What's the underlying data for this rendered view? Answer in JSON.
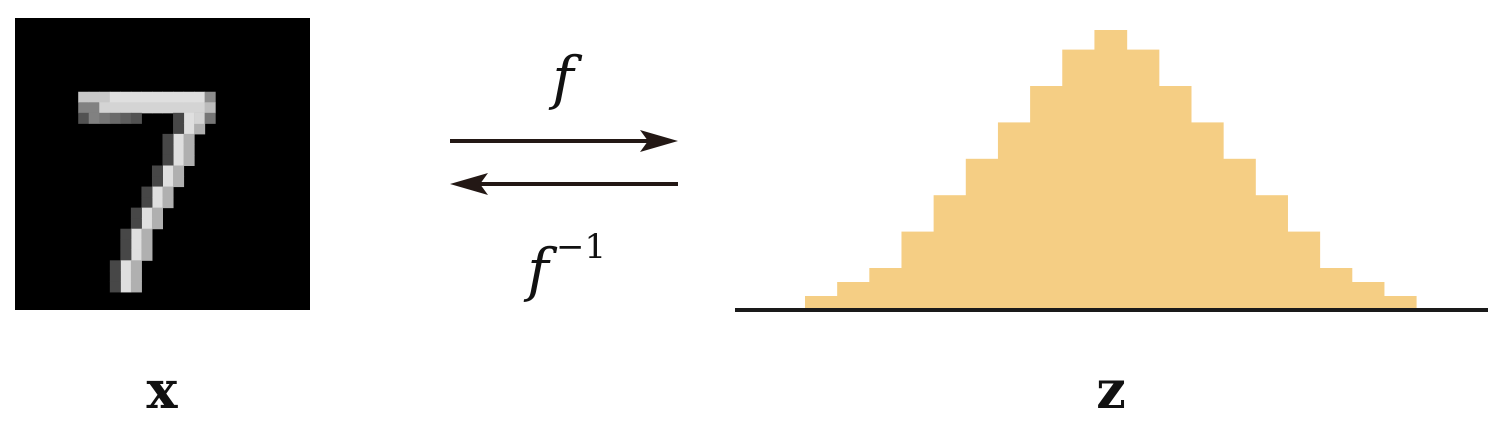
{
  "input": {
    "label": "x",
    "digit": "7",
    "background": "#000000"
  },
  "forward_map": {
    "label": "f",
    "direction": "right"
  },
  "inverse_map": {
    "label": "f",
    "superscript": "−1",
    "direction": "left"
  },
  "latent": {
    "label": "z",
    "histogram_color": "#f5ce84",
    "baseline_color": "#1a1a1a",
    "bar_heights": [
      0.05,
      0.1,
      0.15,
      0.28,
      0.41,
      0.54,
      0.67,
      0.8,
      0.93,
      1.0,
      0.93,
      0.8,
      0.67,
      0.54,
      0.41,
      0.28,
      0.15,
      0.1,
      0.05
    ]
  },
  "colors": {
    "arrow": "#231815",
    "text": "#111111"
  }
}
